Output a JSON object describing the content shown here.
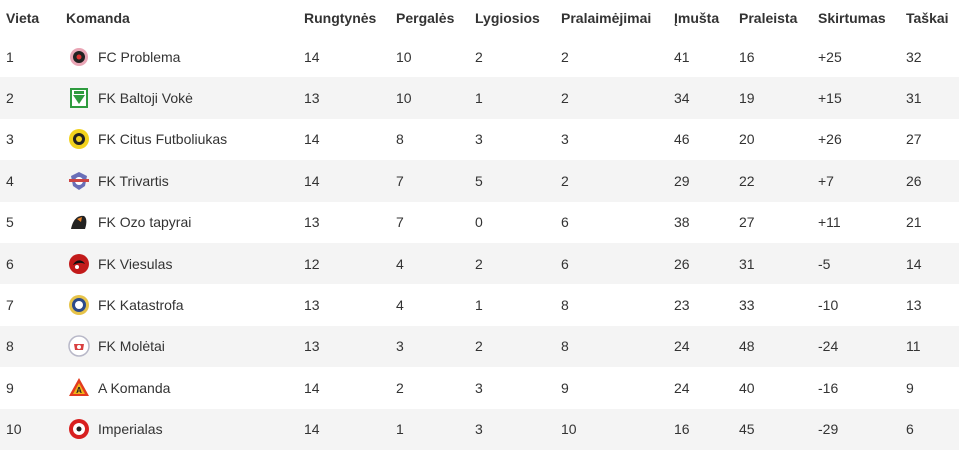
{
  "headers": {
    "vieta": "Vieta",
    "komanda": "Komanda",
    "rungtynes": "Rungtynės",
    "pergales": "Pergalės",
    "lygiosios": "Lygiosios",
    "pralaimejimai": "Pralaimėjimai",
    "imusta": "Įmušta",
    "praleista": "Praleista",
    "skirtumas": "Skirtumas",
    "taskai": "Taškai"
  },
  "rows": [
    {
      "vieta": "1",
      "team": "FC Problema",
      "logo": "fc-problema-badge-icon",
      "rungtynes": "14",
      "pergales": "10",
      "lygiosios": "2",
      "pralaimejimai": "2",
      "imusta": "41",
      "praleista": "16",
      "skirtumas": "+25",
      "taskai": "32"
    },
    {
      "vieta": "2",
      "team": "FK Baltoji Vokė",
      "logo": "fk-baltoji-voke-badge-icon",
      "rungtynes": "13",
      "pergales": "10",
      "lygiosios": "1",
      "pralaimejimai": "2",
      "imusta": "34",
      "praleista": "19",
      "skirtumas": "+15",
      "taskai": "31"
    },
    {
      "vieta": "3",
      "team": "FK Citus Futboliukas",
      "logo": "fk-citus-futboliukas-badge-icon",
      "rungtynes": "14",
      "pergales": "8",
      "lygiosios": "3",
      "pralaimejimai": "3",
      "imusta": "46",
      "praleista": "20",
      "skirtumas": "+26",
      "taskai": "27"
    },
    {
      "vieta": "4",
      "team": "FK Trivartis",
      "logo": "fk-trivartis-badge-icon",
      "rungtynes": "14",
      "pergales": "7",
      "lygiosios": "5",
      "pralaimejimai": "2",
      "imusta": "29",
      "praleista": "22",
      "skirtumas": "+7",
      "taskai": "26"
    },
    {
      "vieta": "5",
      "team": "FK Ozo tapyrai",
      "logo": "fk-ozo-tapyrai-badge-icon",
      "rungtynes": "13",
      "pergales": "7",
      "lygiosios": "0",
      "pralaimejimai": "6",
      "imusta": "38",
      "praleista": "27",
      "skirtumas": "+11",
      "taskai": "21"
    },
    {
      "vieta": "6",
      "team": "FK Viesulas",
      "logo": "fk-viesulas-badge-icon",
      "rungtynes": "12",
      "pergales": "4",
      "lygiosios": "2",
      "pralaimejimai": "6",
      "imusta": "26",
      "praleista": "31",
      "skirtumas": "-5",
      "taskai": "14"
    },
    {
      "vieta": "7",
      "team": "FK Katastrofa",
      "logo": "fk-katastrofa-badge-icon",
      "rungtynes": "13",
      "pergales": "4",
      "lygiosios": "1",
      "pralaimejimai": "8",
      "imusta": "23",
      "praleista": "33",
      "skirtumas": "-10",
      "taskai": "13"
    },
    {
      "vieta": "8",
      "team": "FK Molėtai",
      "logo": "fk-moletai-badge-icon",
      "rungtynes": "13",
      "pergales": "3",
      "lygiosios": "2",
      "pralaimejimai": "8",
      "imusta": "24",
      "praleista": "48",
      "skirtumas": "-24",
      "taskai": "11"
    },
    {
      "vieta": "9",
      "team": "A Komanda",
      "logo": "a-komanda-badge-icon",
      "rungtynes": "14",
      "pergales": "2",
      "lygiosios": "3",
      "pralaimejimai": "9",
      "imusta": "24",
      "praleista": "40",
      "skirtumas": "-16",
      "taskai": "9"
    },
    {
      "vieta": "10",
      "team": "Imperialas",
      "logo": "imperialas-badge-icon",
      "rungtynes": "14",
      "pergales": "1",
      "lygiosios": "3",
      "pralaimejimai": "10",
      "imusta": "16",
      "praleista": "45",
      "skirtumas": "-29",
      "taskai": "6"
    }
  ]
}
